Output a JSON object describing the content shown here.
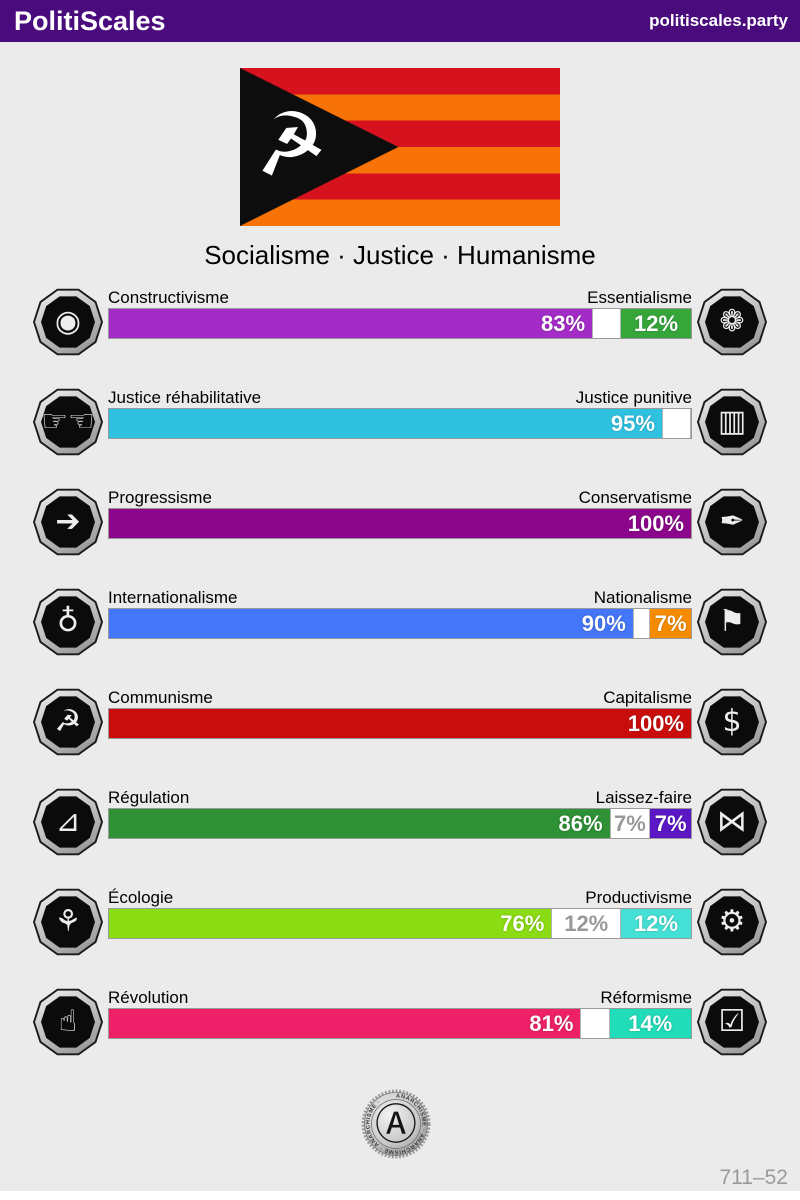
{
  "header": {
    "title": "PolitiScales",
    "site": "politiscales.party"
  },
  "flag": {
    "emblem": "☭",
    "emblem_name": "hammer-and-sickle"
  },
  "subtitle": "Socialisme · Justice · Humanisme",
  "colors": {
    "header_bg": "#4a0b7d",
    "background": "#ebebeb",
    "flag_red": "#d5121e",
    "flag_orange": "#f87307",
    "track_border": "#999999",
    "neutral_text": "#999999"
  },
  "axes": [
    {
      "left_label": "Constructivisme",
      "right_label": "Essentialisme",
      "left_value": "83%",
      "mid_value": "",
      "right_value": "12%",
      "left_pct": 83,
      "mid_pct": 5,
      "right_pct": 12,
      "left_color": "#a32cc6",
      "right_color": "#36a63b",
      "left_icon": "◉",
      "right_icon": "❁",
      "left_icon_name": "eye-icon",
      "right_icon_name": "flower-icon"
    },
    {
      "left_label": "Justice réhabilitative",
      "right_label": "Justice punitive",
      "left_value": "95%",
      "mid_value": "",
      "right_value": "",
      "left_pct": 95,
      "mid_pct": 5,
      "right_pct": 0,
      "left_color": "#2fc2e0",
      "right_color": "",
      "left_icon": "☞☜",
      "right_icon": "▥",
      "left_icon_name": "handshake-icon",
      "right_icon_name": "prison-bars-icon"
    },
    {
      "left_label": "Progressisme",
      "right_label": "Conservatisme",
      "left_value": "100%",
      "mid_value": "",
      "right_value": "",
      "left_pct": 100,
      "mid_pct": 0,
      "right_pct": 0,
      "left_color": "#8b068b",
      "right_color": "",
      "left_icon": "➔",
      "right_icon": "✒",
      "left_icon_name": "progress-icon",
      "right_icon_name": "pen-nib-icon"
    },
    {
      "left_label": "Internationalisme",
      "right_label": "Nationalisme",
      "left_value": "90%",
      "mid_value": "",
      "right_value": "7%",
      "left_pct": 90,
      "mid_pct": 3,
      "right_pct": 7,
      "left_color": "#4376f8",
      "right_color": "#f78b00",
      "left_icon": "♁",
      "right_icon": "⚑",
      "left_icon_name": "globe-icon",
      "right_icon_name": "flag-icon"
    },
    {
      "left_label": "Communisme",
      "right_label": "Capitalisme",
      "left_value": "100%",
      "mid_value": "",
      "right_value": "",
      "left_pct": 100,
      "mid_pct": 0,
      "right_pct": 0,
      "left_color": "#c90d0d",
      "right_color": "",
      "left_icon": "☭",
      "right_icon": "$",
      "left_icon_name": "hammer-sickle-icon",
      "right_icon_name": "money-bag-icon"
    },
    {
      "left_label": "Régulation",
      "right_label": "Laissez-faire",
      "left_value": "86%",
      "mid_value": "7%",
      "right_value": "7%",
      "left_pct": 86,
      "mid_pct": 7,
      "right_pct": 7,
      "left_color": "#2e9135",
      "right_color": "#5b16c5",
      "left_icon": "⊿",
      "right_icon": "⋈",
      "left_icon_name": "ruler-icon",
      "right_icon_name": "butterfly-icon"
    },
    {
      "left_label": "Écologie",
      "right_label": "Productivisme",
      "left_value": "76%",
      "mid_value": "12%",
      "right_value": "12%",
      "left_pct": 76,
      "mid_pct": 12,
      "right_pct": 12,
      "left_color": "#8bdc13",
      "right_color": "#44e0d5",
      "left_icon": "⚘",
      "right_icon": "⚙",
      "left_icon_name": "sprout-icon",
      "right_icon_name": "gear-icon"
    },
    {
      "left_label": "Révolution",
      "right_label": "Réformisme",
      "left_value": "81%",
      "mid_value": "",
      "right_value": "14%",
      "left_pct": 81,
      "mid_pct": 5,
      "right_pct": 14,
      "left_color": "#ee2168",
      "right_color": "#21dcb9",
      "left_icon": "☝",
      "right_icon": "☑",
      "left_icon_name": "raised-fist-icon",
      "right_icon_name": "ballot-icon"
    }
  ],
  "footer": {
    "seal_symbol": "Ⓐ",
    "seal_ring_text": "ANARCHISME · ANARCHISME · ANARCHISME ·",
    "result_code": "711–52"
  }
}
